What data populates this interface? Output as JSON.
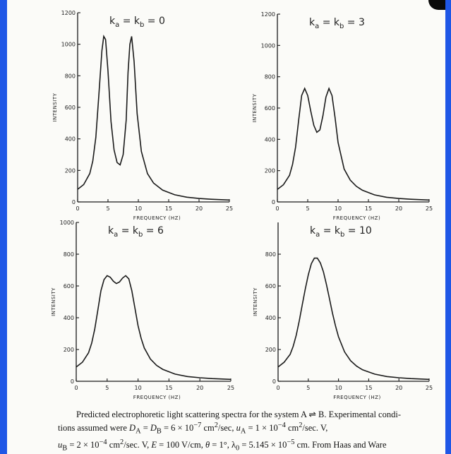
{
  "chart_data": [
    {
      "type": "line",
      "title": "ka = kb = 0",
      "title_main": "k",
      "title_sub1": "a",
      "title_mid": " = k",
      "title_sub2": "b",
      "title_end": " = 0",
      "xlabel": "FREQUENCY (Hz)",
      "ylabel": "INTENSITY",
      "xlim": [
        0,
        25
      ],
      "ylim": [
        0,
        1200
      ],
      "xticks": [
        0,
        5,
        10,
        15,
        20,
        25
      ],
      "yticks": [
        0,
        200,
        400,
        600,
        800,
        1000,
        1200
      ],
      "series": [
        {
          "x": [
            0,
            1,
            2,
            2.5,
            3,
            3.5,
            4,
            4.3,
            4.6,
            5,
            5.5,
            6,
            6.5,
            7,
            7.5,
            8,
            8.3,
            8.6,
            8.9,
            9.3,
            9.8,
            10.5,
            11.5,
            12.5,
            14,
            16,
            18,
            20,
            22,
            25
          ],
          "y": [
            80,
            110,
            180,
            260,
            410,
            680,
            960,
            1050,
            1030,
            830,
            510,
            330,
            250,
            235,
            300,
            520,
            820,
            1000,
            1050,
            890,
            560,
            320,
            180,
            120,
            75,
            45,
            30,
            22,
            17,
            12
          ]
        }
      ]
    },
    {
      "type": "line",
      "title": "ka = kb = 3",
      "title_main": "k",
      "title_sub1": "a",
      "title_mid": " = k",
      "title_sub2": "b",
      "title_end": " = 3",
      "xlabel": "FREQUENCY (Hz)",
      "ylabel": "INTENSITY",
      "xlim": [
        0,
        25
      ],
      "ylim": [
        0,
        1200
      ],
      "xticks": [
        0,
        5,
        10,
        15,
        20,
        25
      ],
      "yticks": [
        0,
        200,
        400,
        600,
        800,
        1000,
        1200
      ],
      "series": [
        {
          "x": [
            0,
            1,
            2,
            2.5,
            3,
            3.5,
            4,
            4.5,
            5,
            5.5,
            6,
            6.5,
            7,
            7.5,
            8,
            8.5,
            9,
            9.5,
            10,
            11,
            12,
            13,
            14,
            16,
            18,
            20,
            22,
            25
          ],
          "y": [
            80,
            110,
            170,
            240,
            350,
            520,
            680,
            725,
            680,
            580,
            490,
            445,
            460,
            550,
            670,
            725,
            680,
            540,
            380,
            210,
            140,
            100,
            75,
            45,
            30,
            22,
            17,
            12
          ]
        }
      ]
    },
    {
      "type": "line",
      "title": "ka = kb = 6",
      "title_main": "k",
      "title_sub1": "a",
      "title_mid": " = k",
      "title_sub2": "b",
      "title_end": " = 6",
      "xlabel": "FREQUENCY (Hz)",
      "ylabel": "INTENSITY",
      "xlim": [
        0,
        25
      ],
      "ylim": [
        0,
        1000
      ],
      "xticks": [
        0,
        5,
        10,
        15,
        20,
        25
      ],
      "yticks": [
        0,
        200,
        400,
        600,
        800,
        1000
      ],
      "series": [
        {
          "x": [
            0,
            1,
            2,
            2.5,
            3,
            3.5,
            4,
            4.5,
            5,
            5.5,
            6,
            6.5,
            7,
            7.5,
            8,
            8.5,
            9,
            9.5,
            10,
            10.5,
            11,
            12,
            13,
            14,
            16,
            18,
            20,
            22,
            25
          ],
          "y": [
            90,
            120,
            180,
            240,
            330,
            450,
            570,
            640,
            665,
            655,
            630,
            615,
            625,
            650,
            665,
            645,
            570,
            460,
            350,
            270,
            210,
            140,
            100,
            75,
            45,
            30,
            22,
            17,
            12
          ]
        }
      ]
    },
    {
      "type": "line",
      "title": "ka = kb = 10",
      "title_main": "k",
      "title_sub1": "a",
      "title_mid": " = k",
      "title_sub2": "b",
      "title_end": " = 10",
      "xlabel": "FREQUENCY (Hz)",
      "ylabel": "INTENSITY",
      "xlim": [
        0,
        25
      ],
      "ylim": [
        0,
        1000
      ],
      "xticks": [
        0,
        5,
        10,
        15,
        20,
        25
      ],
      "yticks": [
        0,
        200,
        400,
        600,
        800
      ],
      "series": [
        {
          "x": [
            0,
            1,
            2,
            2.5,
            3,
            3.5,
            4,
            4.5,
            5,
            5.5,
            6,
            6.5,
            7,
            7.5,
            8,
            8.5,
            9,
            9.5,
            10,
            11,
            12,
            13,
            14,
            16,
            18,
            20,
            22,
            25
          ],
          "y": [
            90,
            120,
            170,
            220,
            290,
            380,
            480,
            580,
            670,
            740,
            775,
            775,
            745,
            690,
            610,
            520,
            430,
            350,
            280,
            185,
            130,
            95,
            72,
            45,
            30,
            22,
            17,
            12
          ]
        }
      ]
    }
  ],
  "caption": {
    "line1": "Predicted electrophoretic light scattering spectra for the system A ⇌ B. Experimental condi-",
    "line2_a": "tions assumed were ",
    "line2_D": "D",
    "line2_subA": "A",
    "line2_b": " = ",
    "line2_subB": "B",
    "line2_c": " = 6 × 10",
    "line2_exp1": "−7",
    "line2_d": " cm",
    "line2_exp2": "2",
    "line2_e": "/sec, ",
    "line2_u": "u",
    "line2_f": " = 1 × 10",
    "line2_exp3": "−4",
    "line2_g": "/sec. V,",
    "line3_u": "u",
    "line3_subB": "B",
    "line3_a": " = 2 × 10",
    "line3_exp1": "−4",
    "line3_b": " cm",
    "line3_exp2": "2",
    "line3_c": "/sec. V, ",
    "line3_E": "E",
    "line3_d": " = 100 V/cm, ",
    "line3_theta": "θ",
    "line3_e": " = 1°, λ",
    "line3_sub0": "0",
    "line3_f": " = 5.145 × 10",
    "line3_exp3": "−5",
    "line3_g": " cm. From Haas and Ware"
  }
}
